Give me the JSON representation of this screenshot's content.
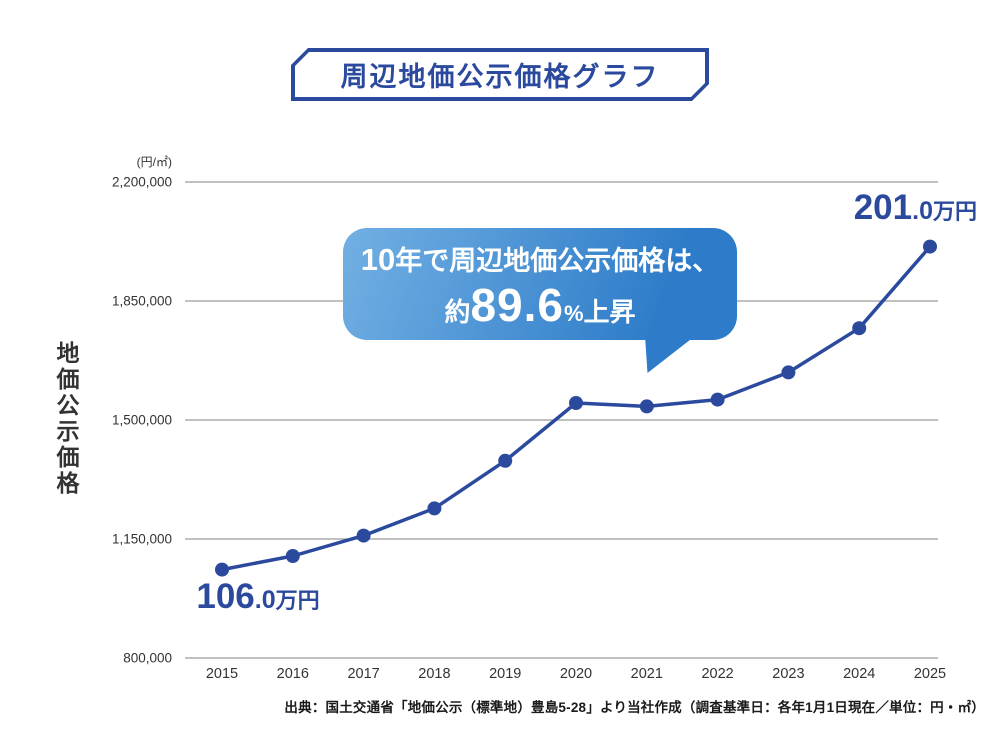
{
  "title": {
    "text": "周辺地価公示価格グラフ"
  },
  "y_axis": {
    "title": "地価公示価格",
    "unit": "(円/㎡)"
  },
  "callout": {
    "line1_num": "10",
    "line1_text": "年で周辺地価公示価格は、",
    "line2_prefix": "約",
    "line2_value": "89.6",
    "line2_percent": "%",
    "line2_suffix": "上昇"
  },
  "labels": {
    "start": {
      "num": "106",
      "decimal": ".0",
      "unit": "万円"
    },
    "end": {
      "num": "201",
      "decimal": ".0",
      "unit": "万円"
    }
  },
  "source": {
    "text": "出典：国土交通省「地価公示（標準地）豊島5-28」より当社作成（調査基準日：各年1月1日現在／単位：円・㎡）"
  },
  "colors": {
    "accent": "#2B4A9E",
    "bubble_from": "#72B0E3",
    "bubble_to": "#2E7CC9",
    "grid": "#9A9A9A",
    "text": "#333333"
  },
  "chart_data": {
    "type": "line",
    "title": "周辺地価公示価格グラフ",
    "ylabel": "地価公示価格",
    "unit_label": "(円/㎡)",
    "categories": [
      "2015",
      "2016",
      "2017",
      "2018",
      "2019",
      "2020",
      "2021",
      "2022",
      "2023",
      "2024",
      "2025"
    ],
    "values": [
      1060000,
      1100000,
      1160000,
      1240000,
      1380000,
      1550000,
      1540000,
      1560000,
      1640000,
      1770000,
      2010000
    ],
    "ylim": [
      800000,
      2200000
    ],
    "yticks": [
      {
        "value": 2200000,
        "label": "2,200,000"
      },
      {
        "value": 1850000,
        "label": "1,850,000"
      },
      {
        "value": 1500000,
        "label": "1,500,000"
      },
      {
        "value": 1150000,
        "label": "1,150,000"
      },
      {
        "value": 800000,
        "label": "800,000"
      }
    ],
    "grid": true,
    "legend": false,
    "series_color": "#2B4A9E",
    "annotations": [
      {
        "at": "2015",
        "label": "106.0万円"
      },
      {
        "at": "2025",
        "label": "201.0万円"
      },
      {
        "type": "callout",
        "text": "10年で周辺地価公示価格は、約89.6%上昇"
      }
    ]
  }
}
